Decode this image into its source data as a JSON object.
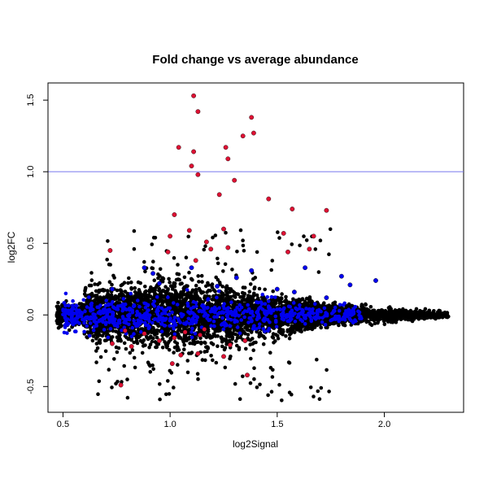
{
  "chart_data": {
    "type": "scatter",
    "title": "Fold change vs average abundance",
    "xlabel": "log2Signal",
    "ylabel": "log2FC",
    "xlim": [
      0.43,
      2.37
    ],
    "ylim": [
      -0.68,
      1.62
    ],
    "xticks": [
      0.5,
      1.0,
      1.5,
      2.0
    ],
    "xtick_labels": [
      "0.5",
      "1.0",
      "1.5",
      "2.0"
    ],
    "yticks": [
      -0.5,
      0.0,
      0.5,
      1.0,
      1.5
    ],
    "ytick_labels": [
      "-0.5",
      "0.0",
      "0.5",
      "1.0",
      "1.5"
    ],
    "grid": false,
    "reference_line": {
      "y": 1.0,
      "color": "#7777ee"
    },
    "colors": {
      "background_points": "#000000",
      "blue_points": "#0000ee",
      "red_points": "#dd1133"
    },
    "series": [
      {
        "color": "#dd1133",
        "points": [
          [
            1.11,
            1.53
          ],
          [
            1.13,
            1.42
          ],
          [
            1.38,
            1.38
          ],
          [
            1.39,
            1.27
          ],
          [
            1.34,
            1.25
          ],
          [
            1.04,
            1.17
          ],
          [
            1.26,
            1.17
          ],
          [
            1.11,
            1.14
          ],
          [
            1.27,
            1.09
          ],
          [
            1.1,
            1.04
          ],
          [
            1.13,
            0.98
          ],
          [
            1.3,
            0.94
          ],
          [
            1.23,
            0.84
          ],
          [
            1.46,
            0.81
          ],
          [
            1.57,
            0.74
          ],
          [
            1.73,
            0.73
          ],
          [
            1.02,
            0.7
          ],
          [
            1.25,
            0.6
          ],
          [
            1.09,
            0.59
          ],
          [
            1.53,
            0.57
          ],
          [
            1.67,
            0.55
          ],
          [
            1.0,
            0.55
          ],
          [
            1.17,
            0.51
          ],
          [
            1.27,
            0.47
          ],
          [
            1.65,
            0.46
          ],
          [
            1.19,
            0.46
          ],
          [
            1.55,
            0.44
          ],
          [
            0.72,
            0.45
          ],
          [
            0.99,
            0.44
          ],
          [
            1.12,
            0.38
          ],
          [
            1.07,
            -0.12
          ],
          [
            1.16,
            -0.1
          ],
          [
            0.79,
            -0.11
          ],
          [
            1.02,
            -0.16
          ],
          [
            1.28,
            -0.21
          ],
          [
            0.73,
            -0.2
          ],
          [
            0.82,
            -0.22
          ],
          [
            1.05,
            -0.28
          ],
          [
            1.13,
            -0.27
          ],
          [
            1.01,
            -0.34
          ],
          [
            1.25,
            -0.29
          ],
          [
            0.88,
            -0.13
          ],
          [
            1.35,
            -0.18
          ],
          [
            0.77,
            -0.49
          ],
          [
            1.36,
            -0.42
          ],
          [
            1.14,
            -0.14
          ],
          [
            0.95,
            -0.18
          ]
        ]
      },
      {
        "color": "#0000ee",
        "points": [
          [
            1.8,
            0.27
          ],
          [
            1.84,
            0.21
          ],
          [
            1.96,
            0.24
          ],
          [
            1.63,
            0.33
          ],
          [
            1.38,
            0.31
          ],
          [
            1.1,
            0.33
          ],
          [
            0.92,
            0.29
          ],
          [
            0.73,
            0.18
          ],
          [
            0.95,
            0.22
          ],
          [
            1.31,
            0.26
          ],
          [
            1.5,
            0.18
          ],
          [
            1.73,
            0.12
          ],
          [
            1.58,
            0.16
          ],
          [
            1.22,
            0.2
          ],
          [
            0.88,
            0.33
          ]
        ]
      }
    ]
  }
}
